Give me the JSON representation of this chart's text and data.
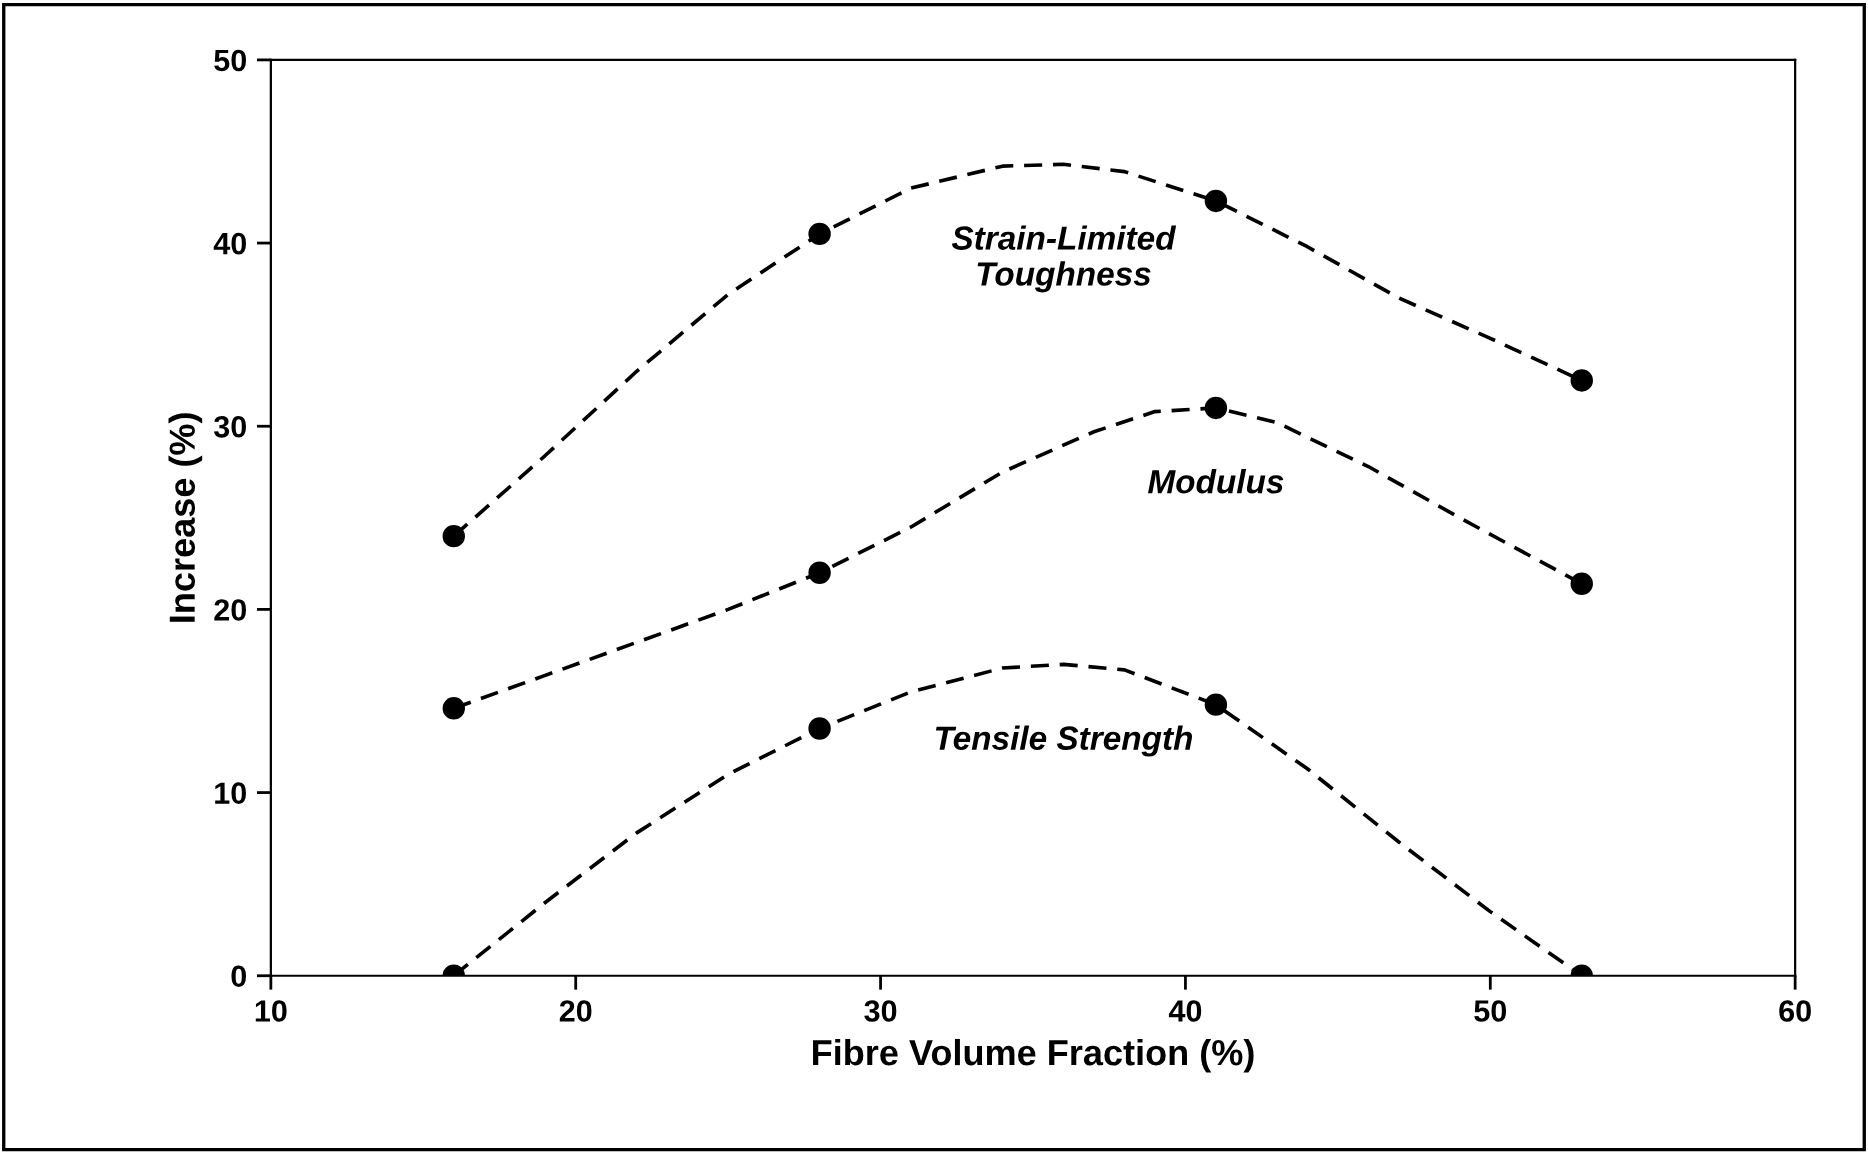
{
  "chart_data": {
    "type": "line",
    "xlabel": "Fibre Volume Fraction (%)",
    "ylabel": "Increase (%)",
    "x": [
      16,
      28,
      41,
      53
    ],
    "series": [
      {
        "type": "scatter",
        "marker": "circle",
        "color": "#000000",
        "values": [
          24.0,
          40.5,
          42.3,
          32.5
        ]
      },
      {
        "type": "scatter",
        "marker": "circle",
        "color": "#000000",
        "values": [
          14.6,
          22.0,
          31.0,
          21.4
        ]
      },
      {
        "type": "scatter",
        "marker": "circle",
        "color": "#000000",
        "values": [
          0,
          13.5,
          14.8,
          0
        ]
      },
      {
        "name": "Strain-Limited\nToughness",
        "color": "#000000",
        "x": [
          16,
          19,
          22,
          25,
          28,
          31,
          34,
          36,
          38,
          41,
          44,
          47,
          50,
          53
        ],
        "values": [
          24.0,
          28.4,
          33.0,
          37.2,
          40.5,
          43.0,
          44.2,
          44.3,
          43.9,
          42.3,
          39.8,
          37.0,
          34.8,
          32.5
        ]
      },
      {
        "name": "Modulus",
        "color": "#000000",
        "x": [
          16,
          19,
          22,
          25,
          28,
          31,
          34,
          37,
          39,
          41,
          43,
          46,
          49,
          53
        ],
        "values": [
          14.6,
          16.4,
          18.2,
          20.0,
          22.0,
          24.5,
          27.5,
          29.7,
          30.8,
          31.0,
          30.2,
          27.8,
          25.0,
          21.4
        ]
      },
      {
        "name": "Tensile Strength",
        "color": "#000000",
        "x": [
          16,
          19,
          22,
          25,
          28,
          31,
          34,
          36,
          38,
          41,
          44,
          47,
          50,
          53
        ],
        "values": [
          0,
          4.0,
          7.8,
          11.0,
          13.5,
          15.5,
          16.8,
          17.0,
          16.7,
          14.8,
          11.3,
          7.3,
          3.5,
          0
        ]
      }
    ],
    "xlim": [
      10,
      60
    ],
    "xticks": [
      10,
      20,
      30,
      40,
      50,
      60
    ],
    "ylim": [
      0,
      50
    ],
    "yticks": [
      0,
      10,
      20,
      30,
      40,
      50
    ],
    "line_style": "dashed"
  }
}
